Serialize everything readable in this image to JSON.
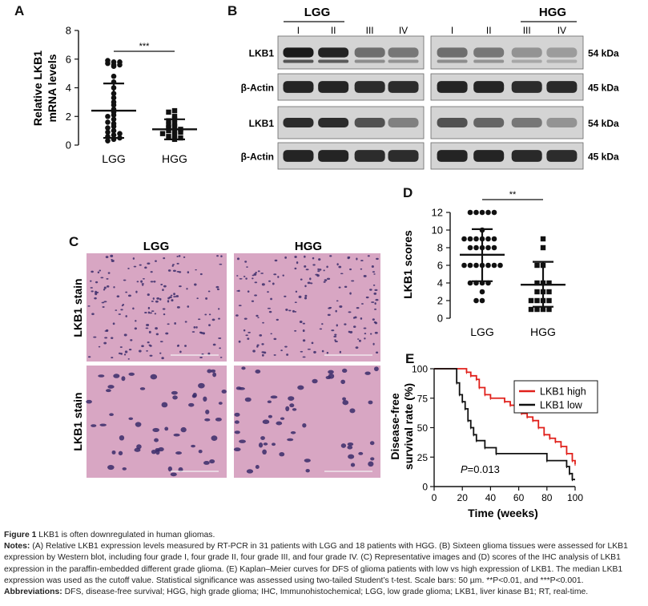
{
  "panels": {
    "A": {
      "label": "A",
      "ylabel_line1": "Relative LKB1",
      "ylabel_line2": "mRNA levels",
      "significance": "***"
    },
    "B": {
      "label": "B",
      "groups": [
        "LGG",
        "HGG"
      ],
      "lanes": [
        "I",
        "II",
        "III",
        "IV",
        "I",
        "II",
        "III",
        "IV"
      ],
      "rows": [
        {
          "name": "LKB1",
          "kda": "54 kDa"
        },
        {
          "name": "β-Actin",
          "kda": "45 kDa"
        },
        {
          "name": "LKB1",
          "kda": "54 kDa"
        },
        {
          "name": "β-Actin",
          "kda": "45 kDa"
        }
      ]
    },
    "C": {
      "label": "C",
      "col_labels": [
        "LGG",
        "HGG"
      ],
      "row_labels": [
        "LKB1 stain",
        "LKB1 stain"
      ]
    },
    "D": {
      "label": "D",
      "ylabel": "LKB1 scores",
      "significance": "**"
    },
    "E": {
      "label": "E",
      "ylabel_line1": "Disease-free",
      "ylabel_line2": "survival rate (%)",
      "xlabel": "Time (weeks)",
      "pvalue": "=0.013",
      "pvalue_italic": "P"
    }
  },
  "chart_data": [
    {
      "type": "scatter",
      "panel": "A",
      "categories": [
        "LGG",
        "HGG"
      ],
      "ylim": [
        0,
        8
      ],
      "yticks": [
        0,
        2,
        4,
        6,
        8
      ],
      "ylabel": "Relative LKB1 mRNA levels",
      "significance": "***",
      "series": [
        {
          "name": "LGG",
          "mean": 2.4,
          "sd_upper": 4.3,
          "sd_lower": 0.5,
          "values": [
            5.8,
            5.6,
            5.7,
            5.9,
            5.8,
            5.6,
            5.5,
            4.8,
            4.4,
            4.0,
            3.6,
            3.3,
            3.0,
            2.8,
            2.5,
            2.3,
            2.1,
            2.0,
            1.8,
            1.6,
            1.5,
            1.3,
            1.2,
            1.0,
            0.9,
            0.8,
            0.7,
            0.6,
            0.5,
            0.4,
            0.3
          ]
        },
        {
          "name": "HGG",
          "mean": 1.1,
          "sd_upper": 1.8,
          "sd_lower": 0.4,
          "values": [
            2.4,
            2.3,
            2.0,
            1.8,
            1.7,
            1.5,
            1.4,
            1.3,
            1.2,
            1.1,
            1.0,
            1.0,
            0.9,
            0.8,
            0.7,
            0.6,
            0.5,
            0.4
          ]
        }
      ]
    },
    {
      "type": "scatter",
      "panel": "D",
      "categories": [
        "LGG",
        "HGG"
      ],
      "ylim": [
        0,
        12
      ],
      "yticks": [
        0,
        2,
        4,
        6,
        8,
        10,
        12
      ],
      "ylabel": "LKB1 scores",
      "significance": "**",
      "series": [
        {
          "name": "LGG",
          "mean": 7.2,
          "sd_upper": 10.1,
          "sd_lower": 4.2,
          "values": [
            12,
            12,
            12,
            12,
            12,
            10,
            9,
            9,
            9,
            9,
            9,
            9,
            8,
            8,
            8,
            8,
            8,
            6,
            6,
            6,
            6,
            6,
            6,
            6,
            4,
            4,
            4,
            4,
            3,
            2,
            2
          ]
        },
        {
          "name": "HGG",
          "mean": 3.8,
          "sd_upper": 6.4,
          "sd_lower": 1.3,
          "values": [
            9,
            8,
            6,
            6,
            4,
            4,
            4,
            3,
            3,
            3,
            2,
            2,
            2,
            2,
            1,
            1,
            1,
            1
          ]
        }
      ]
    },
    {
      "type": "line",
      "panel": "E",
      "xlim": [
        0,
        100
      ],
      "ylim": [
        0,
        100
      ],
      "xticks": [
        0,
        20,
        40,
        60,
        80,
        100
      ],
      "yticks": [
        0,
        25,
        50,
        75,
        100
      ],
      "xlabel": "Time (weeks)",
      "ylabel": "Disease-free survival rate (%)",
      "legend": "top-right",
      "series": [
        {
          "name": "LKB1 high",
          "color": "#e0201b",
          "x": [
            0,
            18,
            23,
            26,
            30,
            32,
            36,
            40,
            46,
            50,
            54,
            58,
            62,
            66,
            70,
            74,
            78,
            82,
            86,
            90,
            94,
            98,
            100
          ],
          "y": [
            100,
            100,
            97,
            94,
            91,
            84,
            78,
            75,
            75,
            72,
            69,
            66,
            62,
            59,
            56,
            50,
            44,
            41,
            38,
            34,
            28,
            22,
            19
          ]
        },
        {
          "name": "LKB1 low",
          "color": "#111111",
          "x": [
            0,
            14,
            16,
            18,
            20,
            22,
            24,
            26,
            28,
            30,
            36,
            44,
            54,
            66,
            80,
            94,
            96,
            98,
            100
          ],
          "y": [
            100,
            100,
            88,
            78,
            72,
            66,
            56,
            50,
            44,
            39,
            33,
            28,
            28,
            28,
            22,
            17,
            11,
            6,
            6
          ]
        }
      ]
    }
  ],
  "caption": {
    "title_bold": "Figure 1",
    "title_text": " LKB1 is often downregulated in human gliomas.",
    "notes_bold": "Notes:",
    "notes_text": " (A) Relative LKB1 expression levels measured by RT-PCR in 31 patients with LGG and 18 patients with HGG. (B) Sixteen glioma tissues were assessed for LKB1 expression by Western blot, including four grade I, four grade II, four grade III, and four grade IV. (C) Representative images and (D) scores of the IHC analysis of LKB1 expression in the paraffin-embedded different grade glioma. (E) Kaplan–Meier curves for DFS of glioma patients with low vs high expression of LKB1. The median LKB1 expression was used as the cutoff value. Statistical significance was assessed using two-tailed Student’s t-test. Scale bars: 50 µm. **P<0.01, and ***P<0.001.",
    "abbrev_bold": "Abbreviations:",
    "abbrev_text": " DFS, disease-free survival; HGG, high grade glioma; IHC, Immunohistochemical; LGG, low grade glioma; LKB1, liver kinase B1; RT, real-time."
  }
}
